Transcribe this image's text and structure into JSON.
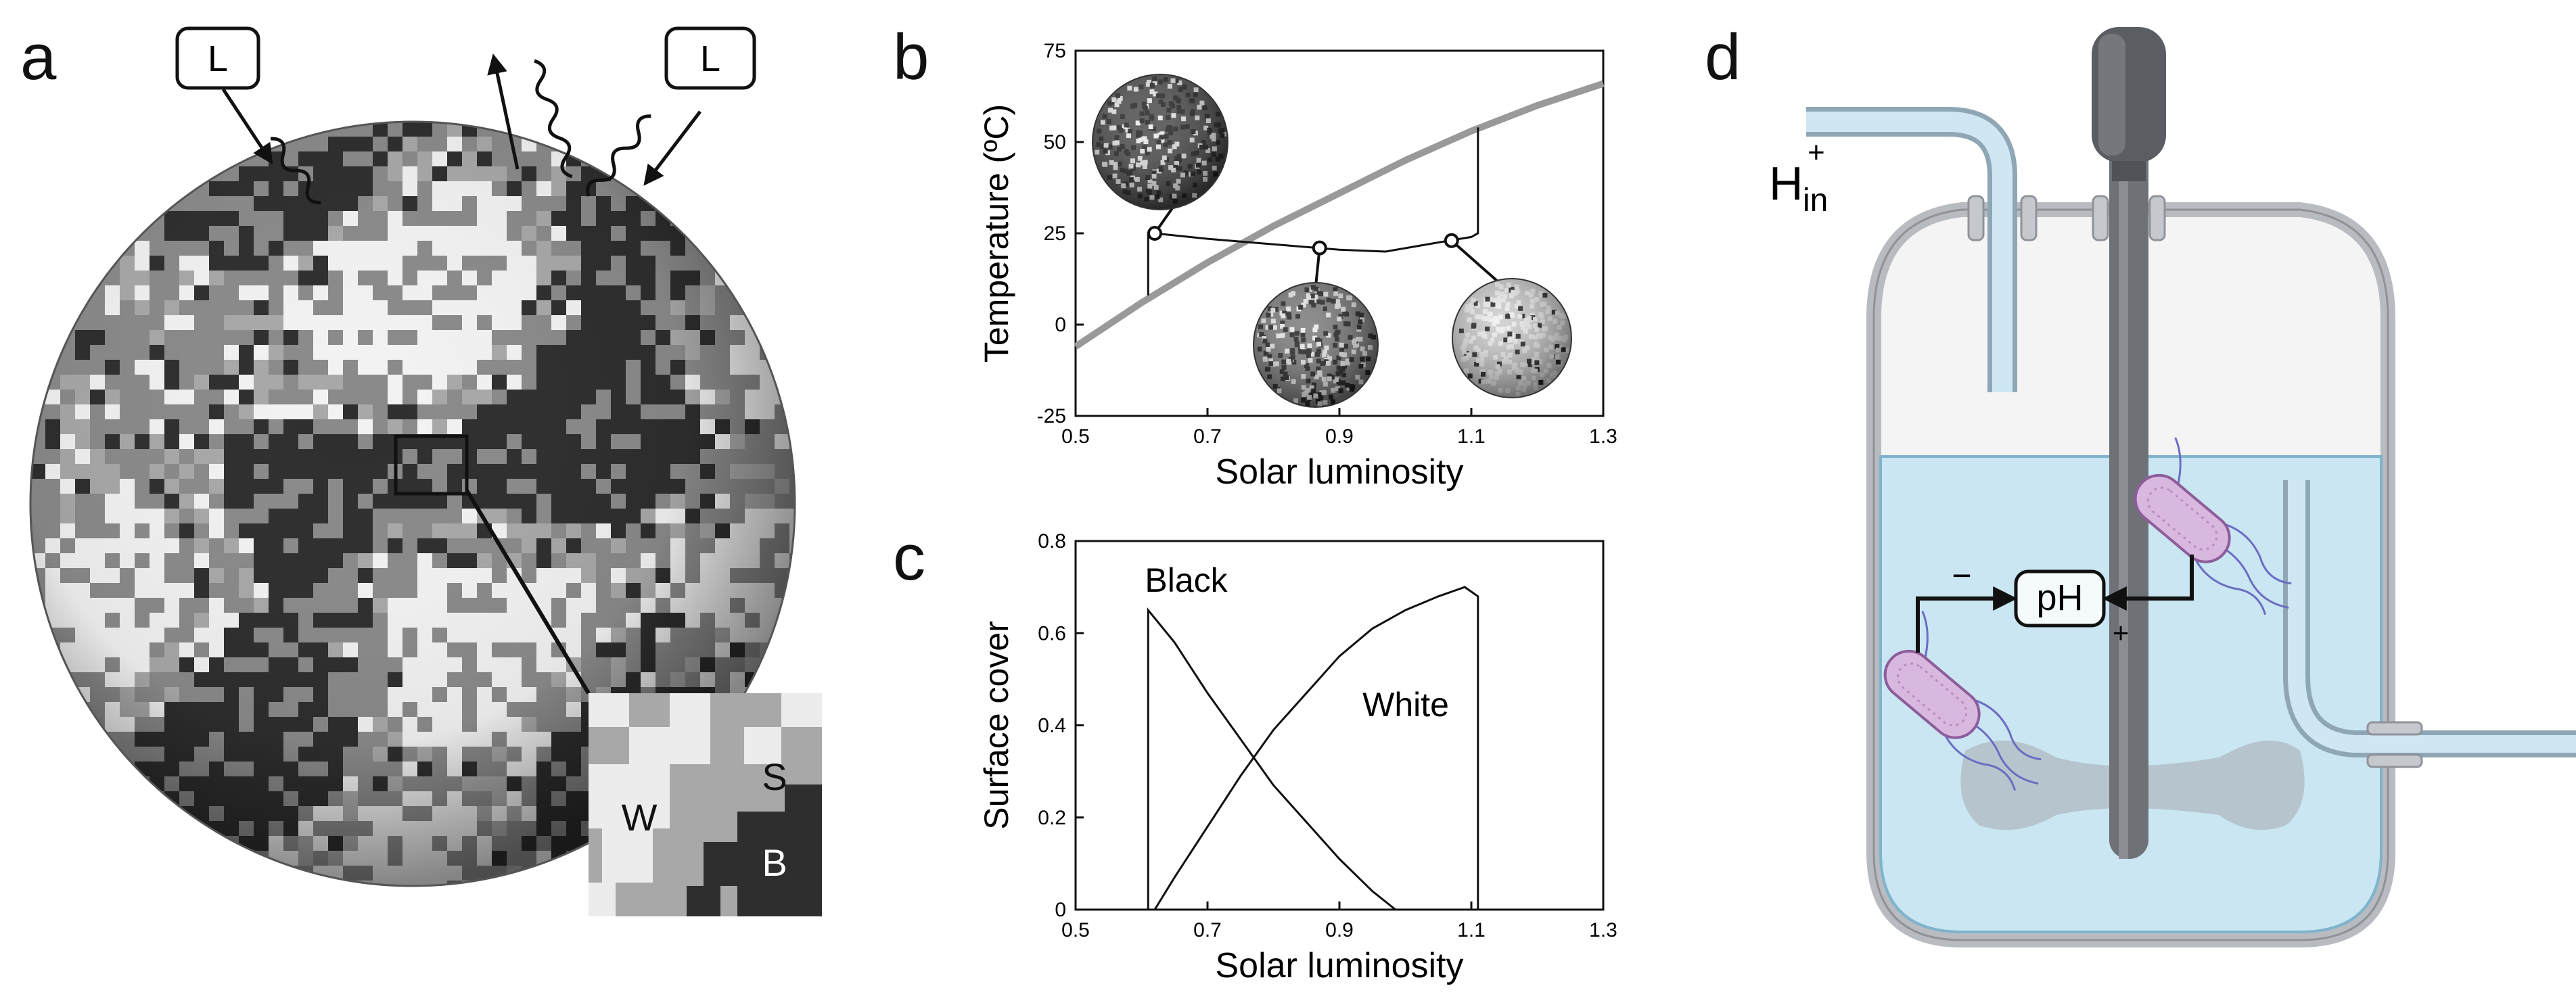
{
  "panels": {
    "a": {
      "letter": "a",
      "light_label": "L",
      "inset_labels": {
        "white": "W",
        "soil": "S",
        "black": "B"
      },
      "colors": {
        "black_daisy": "#2e2e2e",
        "white_daisy": "#f2f2f2",
        "soil": "#a8a8a8"
      }
    },
    "b": {
      "letter": "b",
      "chart_data": {
        "type": "line",
        "xlabel": "Solar luminosity",
        "ylabel": "Temperature (ºC)",
        "xlim": [
          0.5,
          1.3
        ],
        "ylim": [
          -25,
          75
        ],
        "xticks": [
          "0.5",
          "0.7",
          "0.9",
          "1.1",
          "1.3"
        ],
        "yticks": [
          "75",
          "50",
          "25",
          "0",
          "-25"
        ],
        "series": [
          {
            "x": [
              0.5,
              0.6,
              0.7,
              0.8,
              0.9,
              1.0,
              1.1,
              1.2,
              1.3
            ],
            "y": [
              -6,
              6,
              17,
              27,
              36,
              45,
              53,
              60,
              66
            ],
            "color": "#999999"
          },
          {
            "x": [
              0.61,
              0.61,
              0.62,
              0.7,
              0.8,
              0.9,
              0.97,
              1.05,
              1.1,
              1.11,
              1.11
            ],
            "y": [
              8,
              25,
              25,
              23.5,
              22,
              20.5,
              20,
              22.5,
              24,
              25,
              54
            ],
            "color": "#111111"
          }
        ],
        "markers": [
          {
            "x": 0.62,
            "y": 25
          },
          {
            "x": 0.87,
            "y": 21
          },
          {
            "x": 1.07,
            "y": 23
          }
        ]
      }
    },
    "c": {
      "letter": "c",
      "chart_data": {
        "type": "line",
        "xlabel": "Solar luminosity",
        "ylabel": "Surface cover",
        "xlim": [
          0.5,
          1.3
        ],
        "ylim": [
          0,
          0.8
        ],
        "xticks": [
          "0.5",
          "0.7",
          "0.9",
          "1.1",
          "1.3"
        ],
        "yticks": [
          "0.8",
          "0.6",
          "0.4",
          "0.2",
          "0"
        ],
        "series": [
          {
            "name": "Black",
            "x": [
              0.61,
              0.61,
              0.65,
              0.7,
              0.75,
              0.8,
              0.85,
              0.9,
              0.95,
              0.985
            ],
            "y": [
              0,
              0.65,
              0.58,
              0.47,
              0.37,
              0.27,
              0.19,
              0.11,
              0.04,
              0
            ]
          },
          {
            "name": "White",
            "x": [
              0.62,
              0.65,
              0.7,
              0.75,
              0.8,
              0.85,
              0.9,
              0.95,
              1.0,
              1.05,
              1.09,
              1.11,
              1.11
            ],
            "y": [
              0,
              0.07,
              0.18,
              0.29,
              0.39,
              0.47,
              0.55,
              0.61,
              0.65,
              0.68,
              0.7,
              0.68,
              0
            ]
          }
        ]
      }
    },
    "d": {
      "letter": "d",
      "inlet_label": "H",
      "inlet_sup": "+",
      "inlet_sub": "in",
      "ph_label": "pH",
      "minus_sign": "−",
      "plus_sign": "+",
      "colors": {
        "liquid": "#c9e6f2",
        "vessel": "#cfd2d6",
        "rod": "#6e7277",
        "bacteria": "#d9b8e0"
      }
    }
  }
}
